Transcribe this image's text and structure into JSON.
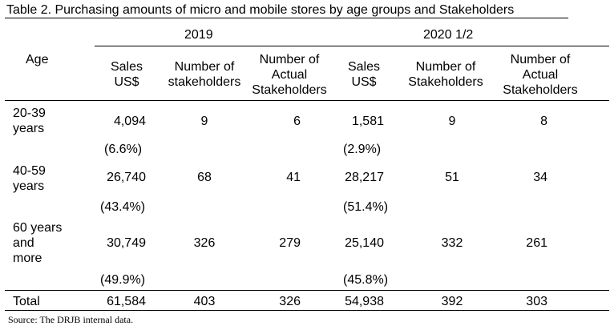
{
  "caption": "Table 2. Purchasing amounts of micro and mobile stores by age groups and Stakeholders",
  "years": [
    "2019",
    "2020 1/2"
  ],
  "age_header": "Age",
  "col_headers": [
    [
      "Sales",
      "US$"
    ],
    [
      "Number of",
      "stakeholders"
    ],
    [
      "Number of",
      "Actual",
      "Stakeholders"
    ],
    [
      "Sales",
      "US$"
    ],
    [
      "Number of",
      "Stakeholders"
    ],
    [
      "Number of",
      "Actual",
      "Stakeholders"
    ]
  ],
  "rows": [
    {
      "age": [
        "20-39",
        "years"
      ],
      "values": [
        "4,094",
        "9",
        "6",
        "1,581",
        "9",
        "8"
      ],
      "pct": [
        "(6.6%)",
        "(2.9%)"
      ]
    },
    {
      "age": [
        "40-59",
        "years"
      ],
      "values": [
        "26,740",
        "68",
        "41",
        "28,217",
        "51",
        "34"
      ],
      "pct": [
        "(43.4%)",
        "(51.4%)"
      ]
    },
    {
      "age": [
        "60 years",
        "and",
        "more"
      ],
      "values": [
        "30,749",
        "326",
        "279",
        "25,140",
        "332",
        "261"
      ],
      "pct": [
        "(49.9%)",
        "(45.8%)"
      ]
    }
  ],
  "total": {
    "label": "Total",
    "values": [
      "61,584",
      "403",
      "326",
      "54,938",
      "392",
      "303"
    ]
  },
  "source": "Source: The DRJB internal data."
}
